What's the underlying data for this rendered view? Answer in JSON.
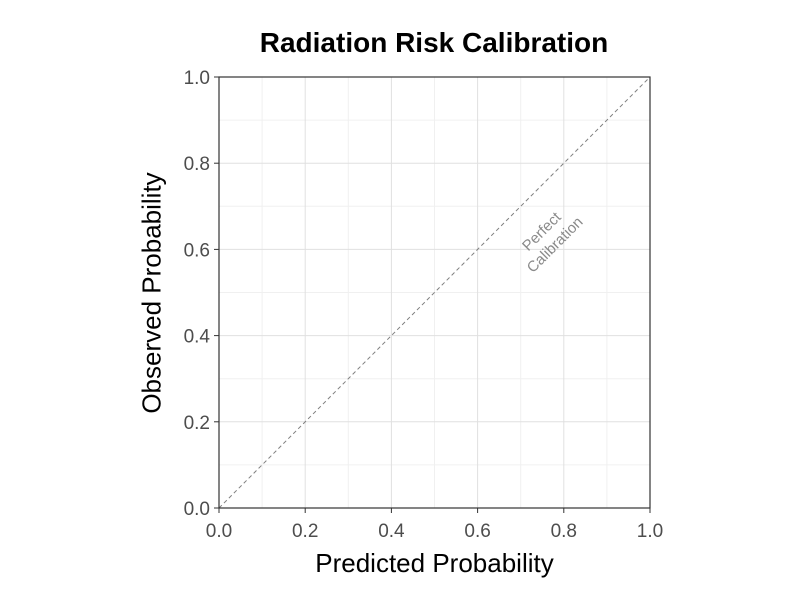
{
  "chart_data": {
    "type": "line",
    "title": "Radiation Risk Calibration",
    "xlabel": "Predicted Probability",
    "ylabel": "Observed Probability",
    "xlim": [
      0,
      1
    ],
    "ylim": [
      0,
      1
    ],
    "xticks": [
      "0.0",
      "0.2",
      "0.4",
      "0.6",
      "0.8",
      "1.0"
    ],
    "yticks": [
      "0.0",
      "0.2",
      "0.4",
      "0.6",
      "0.8",
      "1.0"
    ],
    "tick_values": [
      0,
      0.2,
      0.4,
      0.6,
      0.8,
      1.0
    ],
    "minor_tick_values": [
      0.1,
      0.3,
      0.5,
      0.7,
      0.9
    ],
    "grid": true,
    "reference_line": {
      "x": [
        0,
        1
      ],
      "y": [
        0,
        1
      ],
      "style": "dashed",
      "color": "#808080"
    },
    "annotation": {
      "lines": [
        "Perfect",
        "Calibration"
      ],
      "x": 0.77,
      "y": 0.62,
      "angle": 45,
      "color": "#8a8a8a"
    },
    "series": []
  }
}
